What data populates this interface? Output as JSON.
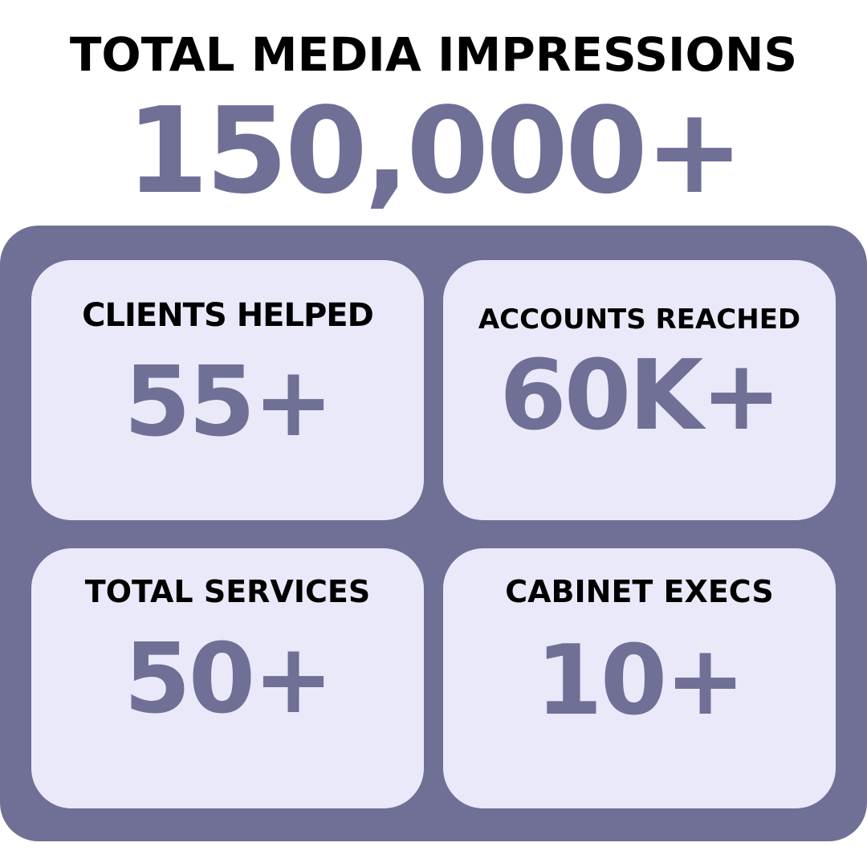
{
  "colors": {
    "accent": "#706f96",
    "card_background": "#eae9f9",
    "text": "#000000",
    "page_background": "#ffffff"
  },
  "headline": "TOTAL MEDIA IMPRESSIONS",
  "total_value": "150,000+",
  "stats": [
    {
      "label": "CLIENTS HELPED",
      "value": "55+"
    },
    {
      "label": "ACCOUNTS REACHED",
      "value": "60K+"
    },
    {
      "label": "TOTAL SERVICES",
      "value": "50+"
    },
    {
      "label": "CABINET EXECS",
      "value": "10+"
    }
  ]
}
